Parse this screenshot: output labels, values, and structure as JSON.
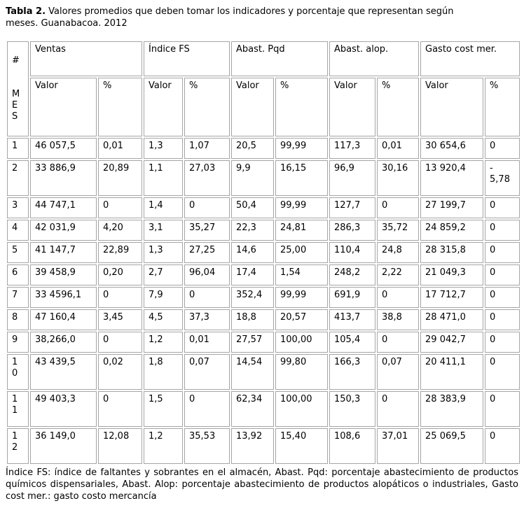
{
  "title": {
    "bold": "Tabla 2.",
    "text": "Valores promedios que deben tomar los indicadores y porcentaje que representan según\nmeses. Guanabacoa. 2012"
  },
  "table": {
    "corner": {
      "top": "#",
      "bottom": "M\nE\nS"
    },
    "groups": [
      {
        "label": "Ventas"
      },
      {
        "label": "Índice FS"
      },
      {
        "label": "Abast. Pqd"
      },
      {
        "label": "Abast. alop."
      },
      {
        "label": "Gasto cost mer."
      }
    ],
    "subheaders": [
      "Valor",
      "%",
      "Valor",
      "%",
      "Valor",
      "%",
      "Valor",
      "%",
      "Valor",
      "%"
    ],
    "rows": [
      {
        "mes": "1",
        "cells": [
          "46 057,5",
          "0,01",
          "1,3",
          "1,07",
          "20,5",
          "99,99",
          "117,3",
          "0,01",
          "30 654,6",
          "0"
        ]
      },
      {
        "mes": "2",
        "cells": [
          "33 886,9",
          "20,89",
          "1,1",
          "27,03",
          "9,9",
          "16,15",
          "96,9",
          "30,16",
          "13 920,4",
          "-\n5,78"
        ]
      },
      {
        "mes": "3",
        "cells": [
          "44 747,1",
          "0",
          "1,4",
          "0",
          "50,4",
          "99,99",
          "127,7",
          "0",
          "27 199,7",
          "0"
        ]
      },
      {
        "mes": "4",
        "cells": [
          "42 031,9",
          "4,20",
          "3,1",
          "35,27",
          "22,3",
          "24,81",
          "286,3",
          "35,72",
          "24 859,2",
          "0"
        ]
      },
      {
        "mes": "5",
        "cells": [
          "41 147,7",
          "22,89",
          "1,3",
          "27,25",
          "14,6",
          "25,00",
          "110,4",
          "24,8",
          "28 315,8",
          "0"
        ]
      },
      {
        "mes": "6",
        "cells": [
          "39 458,9",
          "0,20",
          "2,7",
          "96,04",
          "17,4",
          "1,54",
          "248,2",
          "2,22",
          "21 049,3",
          "0"
        ]
      },
      {
        "mes": "7",
        "cells": [
          "33 4596,1",
          "0",
          "7,9",
          "0",
          "352,4",
          "99,99",
          "691,9",
          "0",
          "17 712,7",
          "0"
        ]
      },
      {
        "mes": "8",
        "cells": [
          "47 160,4",
          "3,45",
          "4,5",
          "37,3",
          "18,8",
          "20,57",
          "413,7",
          "38,8",
          "28 471,0",
          "0"
        ]
      },
      {
        "mes": "9",
        "cells": [
          "38,266,0",
          "0",
          "1,2",
          "0,01",
          "27,57",
          "100,00",
          "105,4",
          "0",
          "29 042,7",
          "0"
        ]
      },
      {
        "mes": "1\n0",
        "cells": [
          "43 439,5",
          "0,02",
          "1,8",
          "0,07",
          "14,54",
          "99,80",
          "166,3",
          "0,07",
          "20 411,1",
          "0"
        ]
      },
      {
        "mes": "1\n1",
        "cells": [
          "49 403,3",
          "0",
          "1,5",
          "0",
          "62,34",
          "100,00",
          "150,3",
          "0",
          "28 383,9",
          "0"
        ]
      },
      {
        "mes": "1\n2",
        "cells": [
          "36 149,0",
          "12,08",
          "1,2",
          "35,53",
          "13,92",
          "15,40",
          "108,6",
          "37,01",
          "25 069,5",
          "0"
        ]
      }
    ]
  },
  "footnote": "Índice FS: índice de faltantes y sobrantes en el almacén, Abast. Pqd: porcentaje abastecimiento de productos químicos dispensariales, Abast. Alop: porcentaje abastecimiento de productos alopáticos o industriales, Gasto cost mer.: gasto costo mercancía"
}
